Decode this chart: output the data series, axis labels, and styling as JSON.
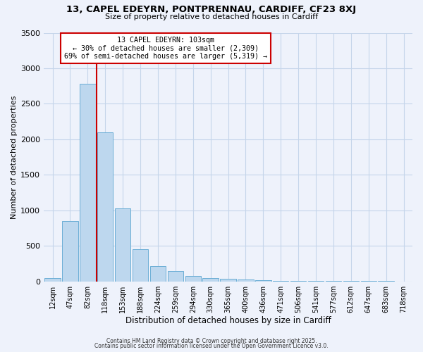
{
  "title": "13, CAPEL EDEYRN, PONTPRENNAU, CARDIFF, CF23 8XJ",
  "subtitle": "Size of property relative to detached houses in Cardiff",
  "xlabel": "Distribution of detached houses by size in Cardiff",
  "ylabel": "Number of detached properties",
  "bar_labels": [
    "12sqm",
    "47sqm",
    "82sqm",
    "118sqm",
    "153sqm",
    "188sqm",
    "224sqm",
    "259sqm",
    "294sqm",
    "330sqm",
    "365sqm",
    "400sqm",
    "436sqm",
    "471sqm",
    "506sqm",
    "541sqm",
    "577sqm",
    "612sqm",
    "647sqm",
    "683sqm",
    "718sqm"
  ],
  "bar_values": [
    50,
    850,
    2780,
    2100,
    1030,
    450,
    210,
    145,
    80,
    50,
    40,
    25,
    15,
    10,
    8,
    5,
    3,
    2,
    1,
    1,
    0
  ],
  "bar_color": "#bdd7ee",
  "bar_edgecolor": "#6baed6",
  "ylim": [
    0,
    3500
  ],
  "yticks": [
    0,
    500,
    1000,
    1500,
    2000,
    2500,
    3000,
    3500
  ],
  "vline_color": "#cc0000",
  "annotation_title": "13 CAPEL EDEYRN: 103sqm",
  "annotation_line1": "← 30% of detached houses are smaller (2,309)",
  "annotation_line2": "69% of semi-detached houses are larger (5,319) →",
  "annotation_box_facecolor": "#ffffff",
  "annotation_box_edgecolor": "#cc0000",
  "footer1": "Contains HM Land Registry data © Crown copyright and database right 2025.",
  "footer2": "Contains public sector information licensed under the Open Government Licence v3.0.",
  "background_color": "#eef2fb",
  "grid_color": "#c5d5ea"
}
